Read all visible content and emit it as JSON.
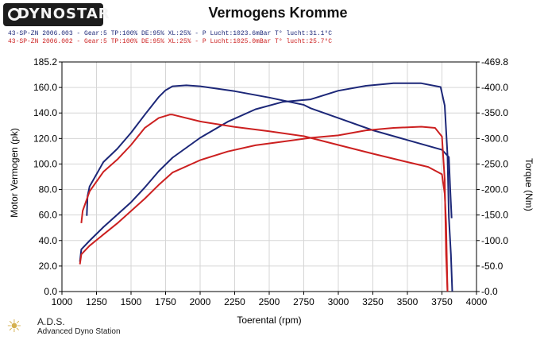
{
  "header": {
    "logo_text": "DYNOSTAR",
    "title": "Vermogens Kromme",
    "run1": "43-SP-ZN 2006.003 - Gear:5 TP:100% DE:95% XL:25%   - P Lucht:1023.6mBar T° lucht:31.1°C",
    "run2": "43-SP-ZN 2006.002 - Gear:5 TP:100% DE:95% XL:25%   - P Lucht:1025.0mBar T° lucht:25.7°C"
  },
  "footer": {
    "brand": "A.D.S.",
    "subtitle": "Advanced Dyno Station",
    "icon": "sun-icon"
  },
  "chart_data": {
    "type": "line",
    "title": "Vermogens Kromme",
    "xlabel": "Toerental (rpm)",
    "ylabel": "Motor Vermogen (pk)",
    "y2label": "Torque (Nm)",
    "xlim": [
      1000,
      4000
    ],
    "ylim": [
      0,
      185.2
    ],
    "y2lim": [
      0,
      469.8
    ],
    "xticks": [
      1000,
      1250,
      1500,
      1750,
      2000,
      2250,
      2500,
      2750,
      3000,
      3250,
      3500,
      3750,
      4000
    ],
    "yticks": [
      "0.0",
      "20.0",
      "40.0",
      "60.0",
      "80.0",
      "100.0",
      "120.0",
      "140.0",
      "160.0",
      "185.2"
    ],
    "y2ticks": [
      "-0.0",
      "-50.0",
      "-100.0",
      "-150.0",
      "-200.0",
      "-250.0",
      "-300.0",
      "-350.0",
      "-400.0",
      "-469.8"
    ],
    "grid": true,
    "colors": {
      "run1": "#1c2778",
      "run2": "#cc2020",
      "grid": "#d6d6d6",
      "axis": "#000000"
    },
    "series": [
      {
        "run": "run1",
        "kind": "torque",
        "axis": "y2",
        "color": "#1c2778",
        "x": [
          1180,
          1185,
          1200,
          1300,
          1400,
          1500,
          1600,
          1700,
          1750,
          1800,
          1900,
          2000,
          2250,
          2500,
          2750,
          2800,
          3000,
          3250,
          3500,
          3750,
          3800,
          3810,
          3820
        ],
        "y": [
          155,
          195,
          215,
          265,
          292,
          325,
          362,
          398,
          412,
          420,
          422,
          420,
          410,
          397,
          382,
          375,
          355,
          330,
          310,
          290,
          275,
          210,
          150
        ]
      },
      {
        "run": "run1",
        "kind": "power",
        "axis": "y",
        "color": "#1c2778",
        "x": [
          1130,
          1140,
          1200,
          1300,
          1400,
          1500,
          1600,
          1700,
          1800,
          2000,
          2200,
          2400,
          2600,
          2800,
          3000,
          3200,
          3400,
          3600,
          3740,
          3770,
          3790,
          3800,
          3815,
          3825
        ],
        "y": [
          24,
          34,
          41,
          52,
          62,
          72,
          84,
          97,
          108,
          124,
          137,
          147,
          153,
          155,
          162,
          166,
          168,
          168,
          165,
          150,
          110,
          60,
          30,
          0
        ]
      },
      {
        "run": "run2",
        "kind": "torque",
        "axis": "y2",
        "color": "#cc2020",
        "x": [
          1140,
          1150,
          1200,
          1300,
          1400,
          1500,
          1600,
          1700,
          1780,
          1800,
          2000,
          2250,
          2500,
          2750,
          3000,
          3250,
          3500,
          3650,
          3750,
          3770,
          3780,
          3790
        ],
        "y": [
          140,
          165,
          205,
          245,
          270,
          300,
          335,
          355,
          362,
          362,
          348,
          337,
          328,
          318,
          300,
          282,
          265,
          255,
          240,
          200,
          140,
          0
        ]
      },
      {
        "run": "run2",
        "kind": "power",
        "axis": "y",
        "color": "#cc2020",
        "x": [
          1130,
          1140,
          1200,
          1300,
          1400,
          1500,
          1600,
          1700,
          1800,
          2000,
          2200,
          2400,
          2600,
          2800,
          3000,
          3200,
          3400,
          3600,
          3700,
          3750,
          3770,
          3780,
          3790
        ],
        "y": [
          22,
          30,
          37,
          46,
          55,
          65,
          75,
          86,
          96,
          106,
          113,
          118,
          121,
          124,
          126,
          130,
          132,
          133,
          132,
          125,
          90,
          30,
          0
        ]
      }
    ]
  }
}
